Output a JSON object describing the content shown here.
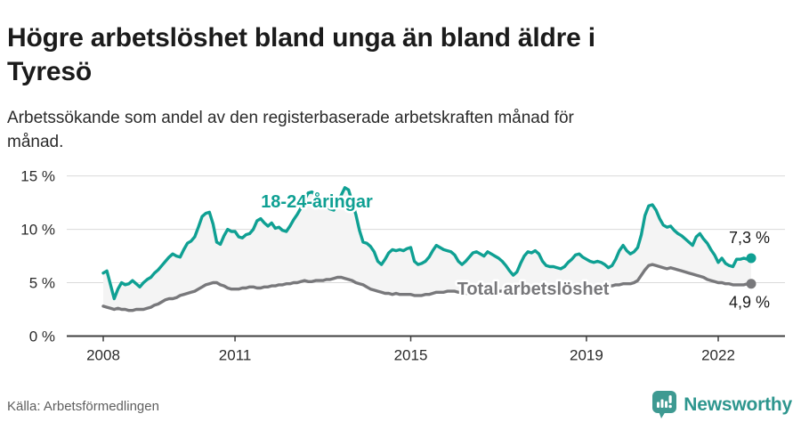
{
  "header": {
    "title_lines": [
      "Högre arbetslöshet bland unga än bland äldre i",
      "Tyresö"
    ],
    "subtitle_lines": [
      "Arbetssökande som andel av den registerbaserade arbetskraften månad för",
      "månad."
    ]
  },
  "footer": {
    "source": "Källa: Arbetsförmedlingen",
    "brand": "Newsworthy"
  },
  "colors": {
    "youth_line": "#0FA093",
    "total_line": "#78787B",
    "area_fill": "#F4F4F4",
    "gridline": "#DADADA",
    "axis": "#3F3F3F",
    "value_label": "#1A1A1A",
    "brand_teal": "#3E9A92"
  },
  "chart_data": {
    "type": "line",
    "title": "Högre arbetslöshet bland unga än bland äldre i Tyresö",
    "subtitle": "Arbetssökande som andel av den registerbaserade arbetskraften månad för månad.",
    "unit": "%",
    "x_interval": "month",
    "x_start": "2008-01",
    "x_end": "2022-10",
    "x_tick_labels": [
      "2008",
      "2011",
      "2015",
      "2019",
      "2022"
    ],
    "x_tick_month_index": [
      0,
      36,
      84,
      132,
      168
    ],
    "y_ticks": [
      0,
      5,
      10,
      15
    ],
    "y_tick_labels": [
      "0 %",
      "5 %",
      "10 %",
      "15 %"
    ],
    "ylim": [
      0,
      16.5
    ],
    "grid": "horizontal",
    "legend_position": "inline-labels",
    "area_fill": "#F4F4F4",
    "series": [
      {
        "name": "18-24-åringar",
        "color": "#0FA093",
        "end_label": "7,3 %",
        "end_value": 7.3,
        "values": [
          5.9,
          6.1,
          4.8,
          3.5,
          4.4,
          5.0,
          4.8,
          4.9,
          5.2,
          4.9,
          4.6,
          5.0,
          5.3,
          5.5,
          5.9,
          6.2,
          6.6,
          7.0,
          7.4,
          7.7,
          7.5,
          7.4,
          8.1,
          8.7,
          8.9,
          9.3,
          10.2,
          11.2,
          11.5,
          11.6,
          10.5,
          8.8,
          8.6,
          9.4,
          10.0,
          9.8,
          9.8,
          9.3,
          9.2,
          9.5,
          9.6,
          10.0,
          10.8,
          11.0,
          10.6,
          10.3,
          10.6,
          10.1,
          10.2,
          9.9,
          9.8,
          10.3,
          10.9,
          11.4,
          12.0,
          12.8,
          13.4,
          13.5,
          13.2,
          12.9,
          12.6,
          12.2,
          11.9,
          11.8,
          12.4,
          13.2,
          13.9,
          13.7,
          12.6,
          11.4,
          9.9,
          8.8,
          8.7,
          8.4,
          7.9,
          7.0,
          6.7,
          7.2,
          7.8,
          8.1,
          8.0,
          8.1,
          8.0,
          8.2,
          8.3,
          7.0,
          6.7,
          6.8,
          7.0,
          7.4,
          8.0,
          8.5,
          8.3,
          8.1,
          8.0,
          7.9,
          7.6,
          7.0,
          6.7,
          7.0,
          7.4,
          7.8,
          7.9,
          7.7,
          7.5,
          7.9,
          7.7,
          7.5,
          7.3,
          7.0,
          6.6,
          6.1,
          5.7,
          6.0,
          6.8,
          7.5,
          7.9,
          7.8,
          8.0,
          7.7,
          7.0,
          6.6,
          6.5,
          6.5,
          6.4,
          6.3,
          6.5,
          6.9,
          7.2,
          7.6,
          7.7,
          7.4,
          7.2,
          7.0,
          6.9,
          7.0,
          6.9,
          6.7,
          6.4,
          6.6,
          7.2,
          8.0,
          8.5,
          8.0,
          7.7,
          7.9,
          8.3,
          9.5,
          11.3,
          12.2,
          12.3,
          11.8,
          11.0,
          10.4,
          10.2,
          10.3,
          9.9,
          9.6,
          9.4,
          9.1,
          8.8,
          8.5,
          9.3,
          9.6,
          9.1,
          8.7,
          8.1,
          7.6,
          6.9,
          7.3,
          6.8,
          6.6,
          6.5,
          7.2,
          7.2,
          7.3,
          7.2,
          7.3
        ]
      },
      {
        "name": "Total arbetslöshet",
        "color": "#78787B",
        "end_label": "4,9 %",
        "end_value": 4.9,
        "values": [
          2.8,
          2.7,
          2.6,
          2.5,
          2.6,
          2.5,
          2.5,
          2.4,
          2.4,
          2.5,
          2.5,
          2.5,
          2.6,
          2.7,
          2.9,
          3.0,
          3.2,
          3.4,
          3.5,
          3.5,
          3.6,
          3.8,
          3.9,
          4.0,
          4.1,
          4.2,
          4.4,
          4.6,
          4.8,
          4.9,
          5.0,
          5.0,
          4.8,
          4.7,
          4.5,
          4.4,
          4.4,
          4.4,
          4.5,
          4.5,
          4.6,
          4.6,
          4.5,
          4.5,
          4.6,
          4.6,
          4.7,
          4.7,
          4.8,
          4.8,
          4.9,
          4.9,
          5.0,
          5.0,
          5.1,
          5.2,
          5.1,
          5.1,
          5.2,
          5.2,
          5.2,
          5.3,
          5.3,
          5.4,
          5.5,
          5.5,
          5.4,
          5.3,
          5.2,
          5.0,
          4.9,
          4.8,
          4.6,
          4.4,
          4.3,
          4.2,
          4.1,
          4.0,
          4.0,
          3.9,
          4.0,
          3.9,
          3.9,
          3.9,
          3.9,
          3.8,
          3.8,
          3.8,
          3.9,
          3.9,
          4.0,
          4.1,
          4.1,
          4.1,
          4.2,
          4.2,
          4.2,
          4.1,
          4.1,
          4.0,
          4.0,
          4.0,
          4.1,
          4.1,
          4.1,
          4.2,
          4.2,
          4.2,
          4.2,
          4.2,
          4.1,
          4.1,
          4.1,
          4.2,
          4.2,
          4.3,
          4.3,
          4.3,
          4.4,
          4.4,
          4.4,
          4.3,
          4.3,
          4.3,
          4.3,
          4.4,
          4.4,
          4.5,
          4.5,
          4.5,
          4.6,
          4.6,
          4.6,
          4.5,
          4.5,
          4.5,
          4.6,
          4.6,
          4.7,
          4.7,
          4.8,
          4.8,
          4.9,
          4.9,
          4.9,
          5.0,
          5.2,
          5.7,
          6.2,
          6.6,
          6.7,
          6.6,
          6.5,
          6.4,
          6.3,
          6.4,
          6.3,
          6.2,
          6.1,
          6.0,
          5.9,
          5.8,
          5.7,
          5.6,
          5.5,
          5.3,
          5.2,
          5.1,
          5.0,
          5.0,
          4.9,
          4.9,
          4.8,
          4.8,
          4.8,
          4.8,
          4.9,
          4.9
        ]
      }
    ]
  }
}
